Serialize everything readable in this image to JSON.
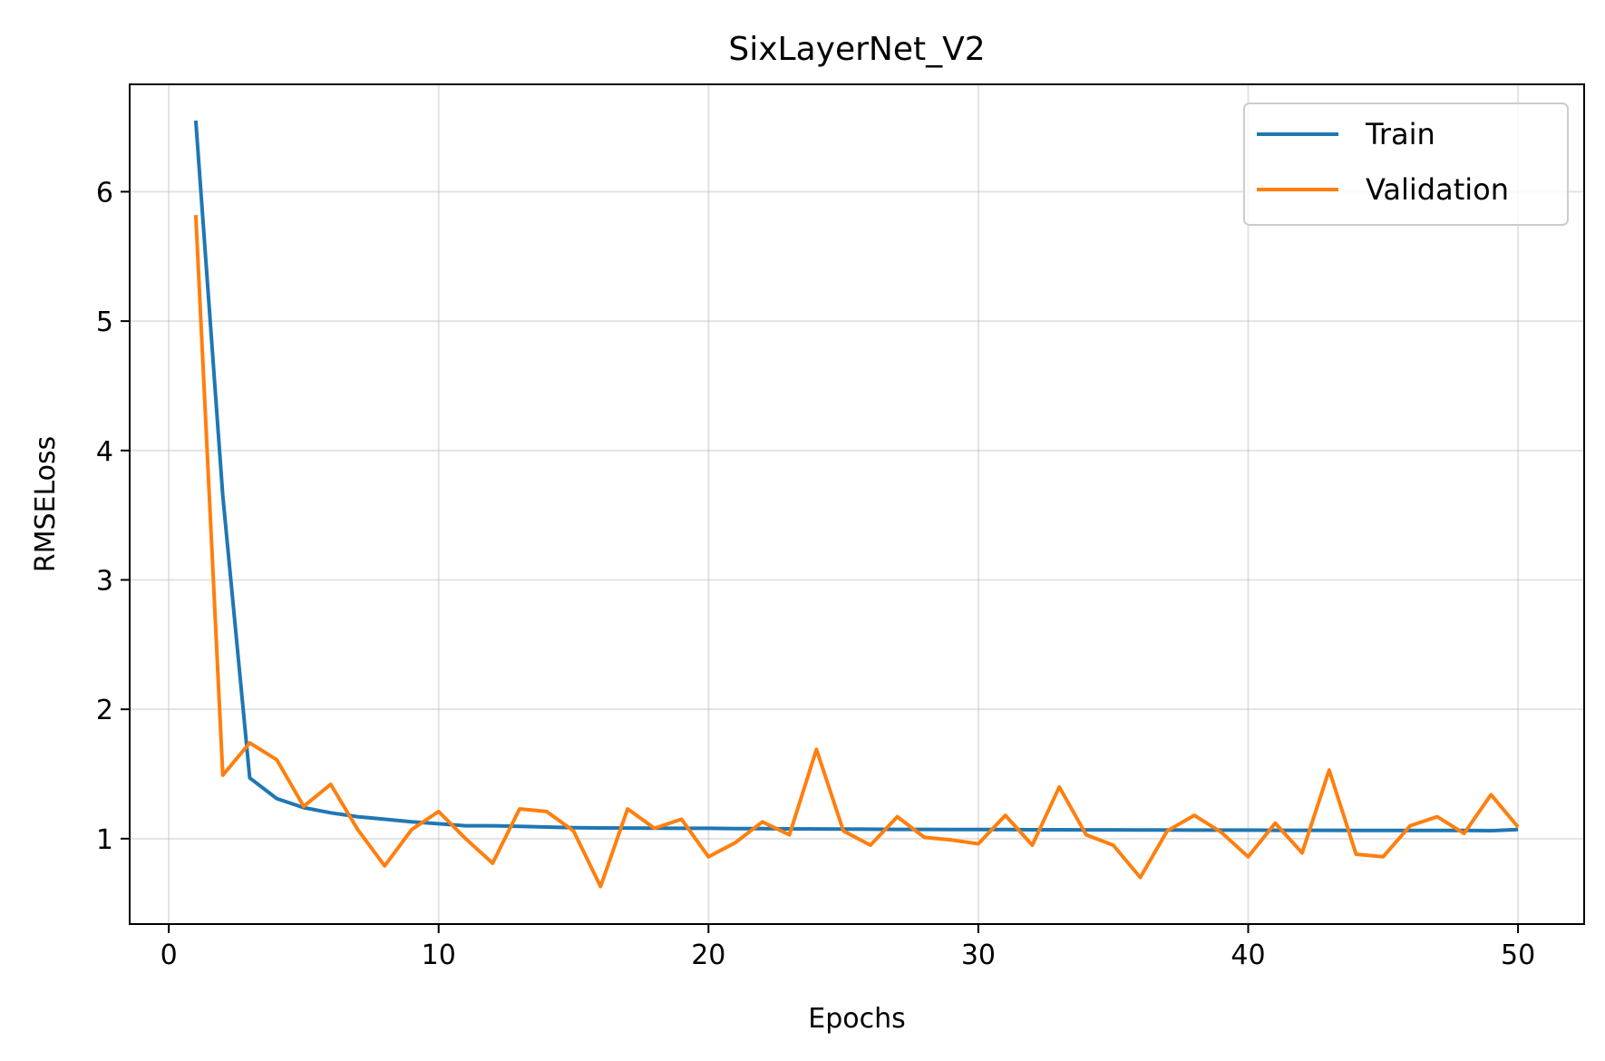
{
  "chart_data": {
    "type": "line",
    "title": "SixLayerNet_V2",
    "xlabel": "Epochs",
    "ylabel": "RMSELoss",
    "xlim": [
      -1.45,
      52.45
    ],
    "ylim": [
      0.34,
      6.83
    ],
    "xticks": [
      0,
      10,
      20,
      30,
      40,
      50
    ],
    "yticks": [
      1,
      2,
      3,
      4,
      5,
      6
    ],
    "grid": true,
    "legend_position": "top-right",
    "x": [
      1,
      2,
      3,
      4,
      5,
      6,
      7,
      8,
      9,
      10,
      11,
      12,
      13,
      14,
      15,
      16,
      17,
      18,
      19,
      20,
      21,
      22,
      23,
      24,
      25,
      26,
      27,
      28,
      29,
      30,
      31,
      32,
      33,
      34,
      35,
      36,
      37,
      38,
      39,
      40,
      41,
      42,
      43,
      44,
      45,
      46,
      47,
      48,
      49,
      50
    ],
    "series": [
      {
        "name": "Train",
        "color": "#1f77b4",
        "values": [
          6.55,
          3.65,
          1.47,
          1.31,
          1.24,
          1.2,
          1.17,
          1.15,
          1.13,
          1.115,
          1.1,
          1.1,
          1.095,
          1.09,
          1.085,
          1.083,
          1.082,
          1.081,
          1.08,
          1.08,
          1.078,
          1.077,
          1.076,
          1.075,
          1.074,
          1.073,
          1.072,
          1.072,
          1.071,
          1.07,
          1.07,
          1.069,
          1.069,
          1.068,
          1.068,
          1.067,
          1.067,
          1.066,
          1.066,
          1.066,
          1.065,
          1.065,
          1.065,
          1.064,
          1.064,
          1.064,
          1.063,
          1.063,
          1.062,
          1.07
        ]
      },
      {
        "name": "Validation",
        "color": "#ff7f0e",
        "values": [
          5.82,
          1.49,
          1.74,
          1.61,
          1.25,
          1.42,
          1.07,
          0.79,
          1.07,
          1.21,
          1.0,
          0.81,
          1.23,
          1.21,
          1.06,
          0.63,
          1.23,
          1.08,
          1.15,
          0.86,
          0.97,
          1.13,
          1.03,
          1.69,
          1.06,
          0.95,
          1.17,
          1.01,
          0.99,
          0.96,
          1.18,
          0.95,
          1.4,
          1.03,
          0.95,
          0.7,
          1.06,
          1.18,
          1.05,
          0.86,
          1.12,
          0.89,
          1.53,
          0.88,
          0.86,
          1.1,
          1.17,
          1.04,
          1.34,
          1.09
        ]
      }
    ]
  }
}
